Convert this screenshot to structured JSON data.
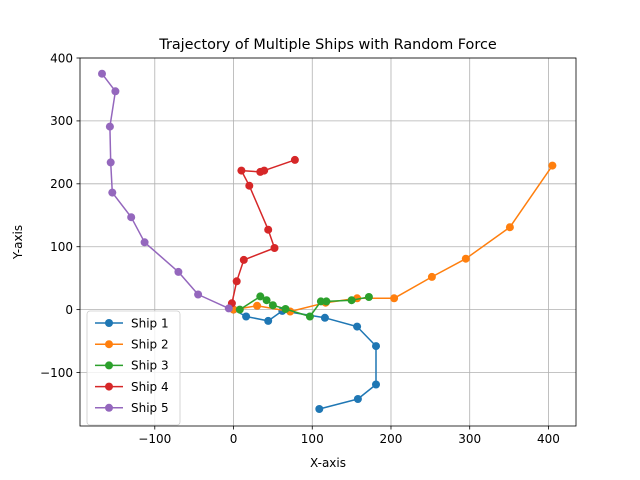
{
  "chart_data": {
    "type": "line",
    "title": "Trajectory of Multiple Ships with Random Force",
    "xlabel": "X-axis",
    "ylabel": "Y-axis",
    "xlim": [
      -195,
      435
    ],
    "ylim": [
      -185,
      400
    ],
    "xticks": [
      -100,
      0,
      100,
      200,
      300,
      400
    ],
    "yticks": [
      -100,
      0,
      100,
      200,
      300,
      400
    ],
    "xtick_labels": [
      "−100",
      "0",
      "100",
      "200",
      "300",
      "400"
    ],
    "ytick_labels": [
      "−100",
      "0",
      "100",
      "200",
      "300",
      "400"
    ],
    "grid": true,
    "legend_position": "lower-left",
    "series": [
      {
        "name": "Ship 1",
        "color": "#1f77b4",
        "x": [
          0,
          16,
          44,
          62,
          116,
          157,
          181,
          181,
          158,
          109
        ],
        "y": [
          0,
          -11,
          -18,
          -2,
          -13,
          -27,
          -58,
          -119,
          -142,
          -158
        ]
      },
      {
        "name": "Ship 2",
        "color": "#ff7f0e",
        "x": [
          0,
          30,
          72,
          117,
          157,
          204,
          252,
          295,
          351,
          405
        ],
        "y": [
          0,
          6,
          -3,
          11,
          18,
          18,
          52,
          81,
          131,
          229
        ]
      },
      {
        "name": "Ship 3",
        "color": "#2ca02c",
        "x": [
          8,
          34,
          42,
          50,
          66,
          97,
          111,
          118,
          150,
          172
        ],
        "y": [
          0,
          21,
          15,
          7,
          1,
          -11,
          13,
          13,
          15,
          20
        ]
      },
      {
        "name": "Ship 4",
        "color": "#d62728",
        "x": [
          -2,
          4,
          13,
          52,
          44,
          20,
          10,
          34,
          39,
          78
        ],
        "y": [
          10,
          45,
          79,
          98,
          127,
          197,
          221,
          219,
          221,
          238
        ]
      },
      {
        "name": "Ship 5",
        "color": "#9467bd",
        "x": [
          -6,
          -45,
          -70,
          -113,
          -130,
          -154,
          -156,
          -157,
          -150,
          -167
        ],
        "y": [
          2,
          24,
          60,
          107,
          147,
          186,
          234,
          291,
          347,
          375
        ]
      }
    ]
  }
}
